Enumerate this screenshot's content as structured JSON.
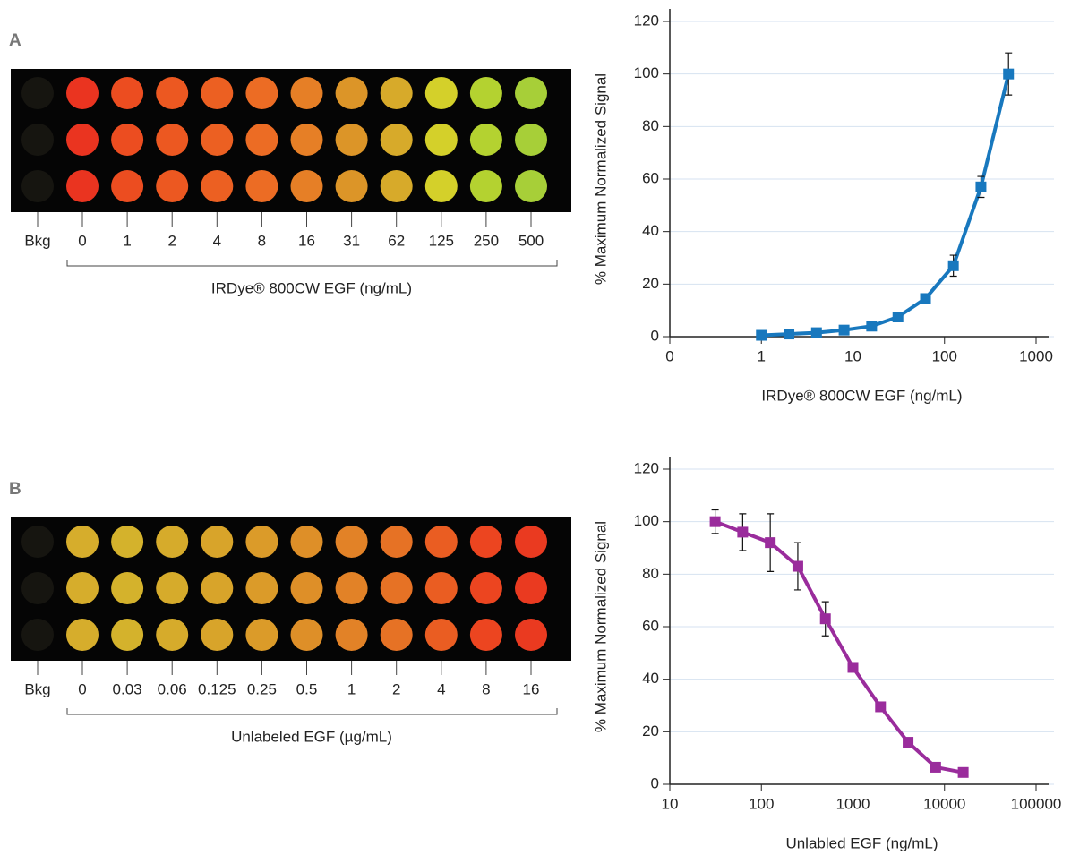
{
  "plates": [
    {
      "label": "A",
      "well_labels": [
        "Bkg",
        "0",
        "1",
        "2",
        "4",
        "8",
        "16",
        "31",
        "62",
        "125",
        "250",
        "500"
      ],
      "axis_label": "IRDye® 800CW EGF (ng/mL)",
      "well_colors": [
        "#161510",
        "#ea3420",
        "#ec4d20",
        "#ec5821",
        "#ec6022",
        "#ec6c24",
        "#e67f26",
        "#dc9528",
        "#d7aa2a",
        "#d4d02a",
        "#b4d230",
        "#a7cf38"
      ]
    },
    {
      "label": "B",
      "well_labels": [
        "Bkg",
        "0",
        "0.03",
        "0.06",
        "0.125",
        "0.25",
        "0.5",
        "1",
        "2",
        "4",
        "8",
        "16"
      ],
      "axis_label": "Unlabeled EGF (µg/mL)",
      "well_colors": [
        "#161510",
        "#d6ad2c",
        "#d4b22c",
        "#d6ab2b",
        "#d8a42a",
        "#db9b29",
        "#de8f28",
        "#e28227",
        "#e67225",
        "#ea5d22",
        "#ec4520",
        "#ea3a20"
      ]
    }
  ],
  "chart_data": [
    {
      "type": "line",
      "x_label": "IRDye® 800CW EGF (ng/mL)",
      "y_label": "% Maximum Normalized Signal",
      "xscale": "log",
      "xlim": [
        0.1,
        1000
      ],
      "xticks": [
        {
          "value": 0.1,
          "label": "0"
        },
        1,
        10,
        100,
        1000
      ],
      "ylim": [
        0,
        120
      ],
      "yticks": [
        0,
        20,
        40,
        60,
        80,
        100,
        120
      ],
      "grid": true,
      "x": [
        1,
        2,
        4,
        8,
        16,
        31,
        62,
        125,
        250,
        500
      ],
      "series": [
        {
          "color": "#1878be",
          "values": [
            0.5,
            1,
            1.5,
            2.5,
            4,
            7.5,
            14.5,
            27,
            57,
            100
          ],
          "errors": [
            0.5,
            0.5,
            0.5,
            0.5,
            0.5,
            0.5,
            0.5,
            4,
            4,
            8
          ]
        }
      ]
    },
    {
      "type": "line",
      "x_label": "Unlabled EGF (ng/mL)",
      "y_label": "% Maximum Normalized Signal",
      "xscale": "log",
      "xlim": [
        10,
        100000
      ],
      "xticks": [
        10,
        100,
        1000,
        10000,
        100000
      ],
      "ylim": [
        0,
        120
      ],
      "yticks": [
        0,
        20,
        40,
        60,
        80,
        100,
        120
      ],
      "grid": true,
      "x": [
        31.25,
        62.5,
        125,
        250,
        500,
        1000,
        2000,
        4000,
        8000,
        16000
      ],
      "series": [
        {
          "color": "#9a2c9c",
          "values": [
            100,
            96,
            92,
            83,
            63,
            44.5,
            29.5,
            16,
            6.5,
            4.5
          ],
          "errors": [
            4.5,
            7,
            11,
            9,
            6.5,
            0.5,
            0.5,
            0.5,
            0.5,
            0.5
          ]
        }
      ]
    }
  ]
}
